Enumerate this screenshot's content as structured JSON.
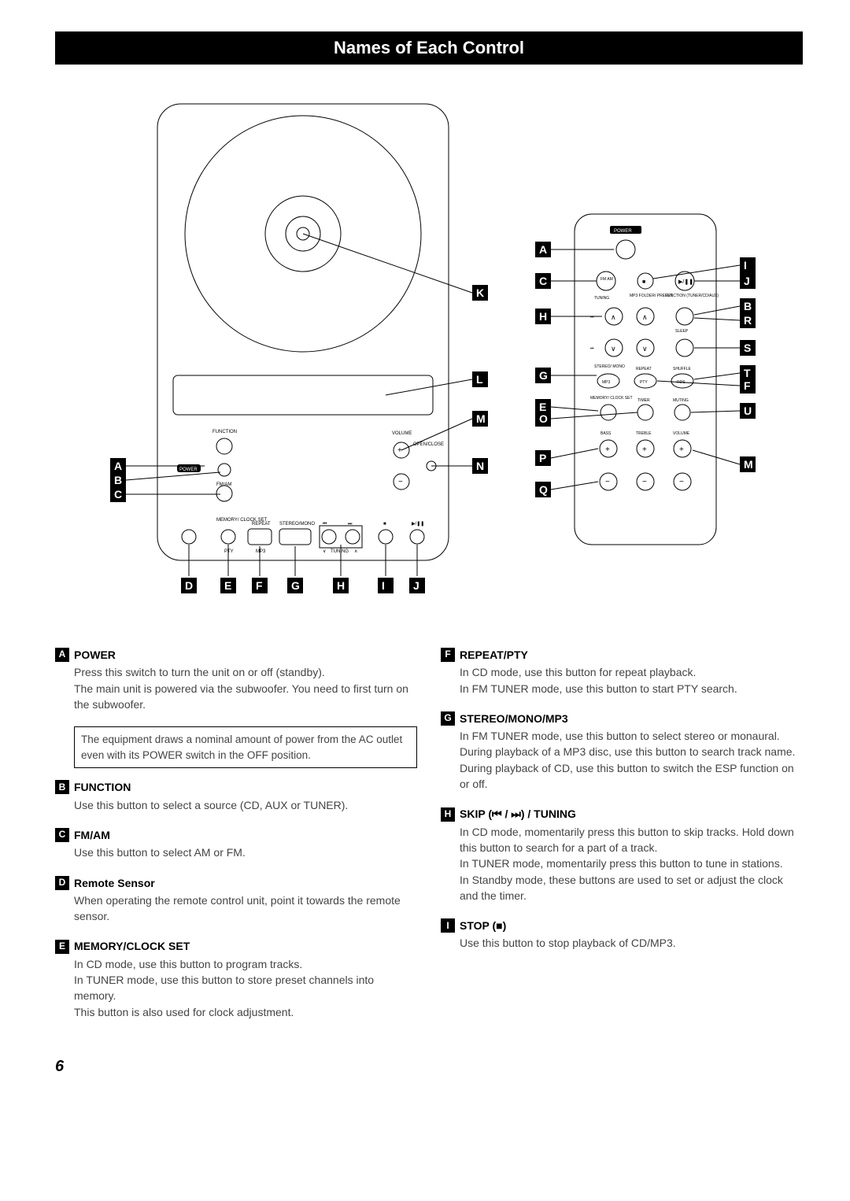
{
  "page_title": "Names of Each Control",
  "page_number": "6",
  "note_box": "The equipment draws a nominal amount of power from the AC outlet even with its POWER switch in the OFF position.",
  "left_items": [
    {
      "letter": "A",
      "title": "POWER",
      "body": "Press this switch to turn the unit on or off (standby).\nThe main unit is powered via the subwoofer. You need to first turn on the subwoofer."
    },
    {
      "letter": "B",
      "title": "FUNCTION",
      "body": "Use this button to select a source (CD, AUX or TUNER)."
    },
    {
      "letter": "C",
      "title": "FM/AM",
      "body": "Use this button to select AM or FM."
    },
    {
      "letter": "D",
      "title": "Remote Sensor",
      "body": "When operating the remote control unit, point it towards the remote sensor."
    },
    {
      "letter": "E",
      "title": "MEMORY/CLOCK SET",
      "body": "In CD mode, use this button to program tracks.\nIn TUNER mode, use this button to store preset channels into memory.\nThis button is also used for clock adjustment."
    }
  ],
  "right_items": [
    {
      "letter": "F",
      "title": "REPEAT/PTY",
      "body": "In CD mode, use this button for repeat playback.\nIn FM TUNER mode, use this button to start PTY search."
    },
    {
      "letter": "G",
      "title": "STEREO/MONO/MP3",
      "body": "In FM TUNER mode, use this button to select stereo or monaural.\nDuring playback of a MP3 disc, use this button to search track name.\nDuring playback of CD, use this button to switch the ESP function on or off."
    },
    {
      "letter": "H",
      "title": "SKIP (⏮ / ⏭) / TUNING",
      "body": "In CD mode, momentarily press this button to skip tracks. Hold down this button to search for a part of a track.\nIn TUNER mode, momentarily press this button to tune in stations.\nIn Standby mode, these buttons are used to set or adjust the clock and the timer."
    },
    {
      "letter": "I",
      "title": "STOP (■)",
      "body": "Use this button to stop playback of CD/MP3."
    }
  ],
  "main_callouts_left": [
    "A",
    "B",
    "C"
  ],
  "main_callouts_bottom": [
    "D",
    "E",
    "F",
    "G",
    "H",
    "I",
    "J"
  ],
  "main_callouts_right": [
    "K",
    "L",
    "M",
    "N"
  ],
  "remote_callouts_left": [
    "A",
    "C",
    "H",
    "G",
    "E",
    "O",
    "P",
    "Q"
  ],
  "remote_callouts_right": [
    "I",
    "J",
    "B",
    "R",
    "S",
    "T",
    "F",
    "U",
    "M"
  ],
  "panel_text": {
    "power": "POWER",
    "function": "FUNCTION",
    "fmam": "FM/AM",
    "memory": "MEMORY/\nCLOCK SET",
    "repeat": "REPEAT",
    "stereo": "STEREO/MONO",
    "pty": "PTY",
    "mp3": "MP3",
    "tuning": "TUNING",
    "volume": "VOLUME",
    "open": "OPEN/CLOSE"
  },
  "remote_text": {
    "power": "POWER",
    "tuning": "TUNING",
    "mp3folder": "MP3 FOLDER/\nPRESET",
    "func": "FUNCTION\n(TUNER/CD/AUX)",
    "sleep": "SLEEP",
    "stereo": "STEREO/\nMONO",
    "repeat": "REPEAT",
    "shuffle": "SHUFFLE",
    "memory": "MEMORY/\nCLOCK SET",
    "timer": "TIMER",
    "muting": "MUTING",
    "bass": "BASS",
    "treble": "TREBLE",
    "volume": "VOLUME",
    "mp3": "MP3",
    "pty": "PTY",
    "rds": "RDS",
    "fmam": "FM\nAM"
  }
}
